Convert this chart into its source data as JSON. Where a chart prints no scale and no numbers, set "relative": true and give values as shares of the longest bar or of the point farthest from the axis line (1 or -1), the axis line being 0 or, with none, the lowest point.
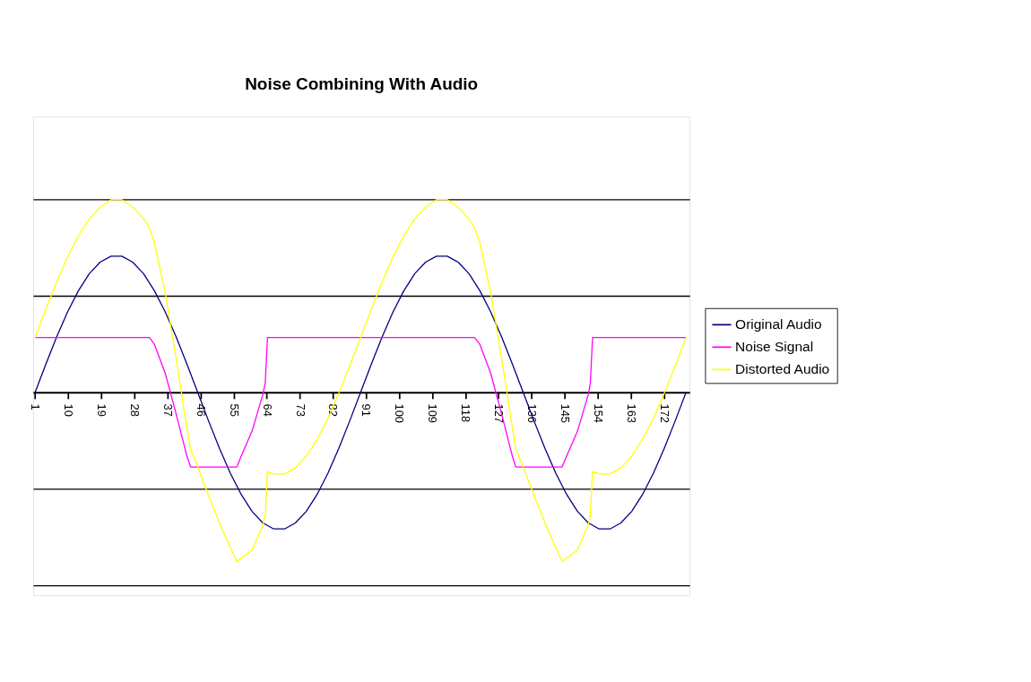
{
  "chart_data": {
    "type": "line",
    "title": "Noise Combining With Audio",
    "relative": true,
    "grid": "y",
    "legend": "right",
    "line_style": "solid",
    "marker": "none",
    "xlim": [
      0.5,
      179
    ],
    "xticks": [
      1,
      10,
      19,
      28,
      37,
      46,
      55,
      64,
      73,
      82,
      91,
      100,
      109,
      118,
      127,
      136,
      145,
      154,
      163,
      172
    ],
    "series": [
      {
        "name": "Original Audio",
        "color": "#000080",
        "x": [
          1,
          3.95,
          6.9,
          9.85,
          12.8,
          15.75,
          18.7,
          21.65,
          24.6,
          27.55,
          30.5,
          33.45,
          36.4,
          39.35,
          42.3,
          45.25,
          48.2,
          51.15,
          54.1,
          57.05,
          60,
          62.95,
          65.9,
          68.85,
          71.8,
          74.75,
          77.7,
          80.65,
          83.6,
          86.55,
          89.5,
          92.45,
          95.4,
          98.35,
          101.3,
          104.25,
          107.2,
          110.15,
          113.1,
          116.05,
          119,
          121.95,
          124.9,
          127.85,
          130.8,
          133.75,
          136.7,
          139.65,
          142.6,
          145.55,
          148.5,
          151.45,
          154.4,
          157.35,
          160.3,
          163.25,
          166.2,
          169.15,
          172.1,
          175.05,
          178
        ],
        "values": [
          0,
          0.148,
          0.289,
          0.418,
          0.528,
          0.616,
          0.676,
          0.707,
          0.707,
          0.676,
          0.616,
          0.528,
          0.418,
          0.289,
          0.148,
          0,
          -0.148,
          -0.289,
          -0.418,
          -0.528,
          -0.616,
          -0.676,
          -0.707,
          -0.707,
          -0.676,
          -0.616,
          -0.528,
          -0.418,
          -0.289,
          -0.148,
          0,
          0.148,
          0.289,
          0.418,
          0.528,
          0.616,
          0.676,
          0.707,
          0.707,
          0.676,
          0.616,
          0.528,
          0.418,
          0.289,
          0.148,
          0,
          -0.148,
          -0.289,
          -0.418,
          -0.528,
          -0.616,
          -0.676,
          -0.707,
          -0.707,
          -0.676,
          -0.616,
          -0.528,
          -0.418,
          -0.289,
          -0.148,
          0
        ]
      },
      {
        "name": "Noise Signal",
        "color": "#ff00ff",
        "x": [
          1,
          32.1,
          33.45,
          36.4,
          39.35,
          42.3,
          43.3,
          55.9,
          57.05,
          60,
          62.95,
          63.6,
          64.2,
          120.5,
          121.95,
          124.9,
          127.85,
          130.8,
          131.7,
          144.3,
          145.55,
          148.5,
          151.45,
          152,
          152.6,
          178
        ],
        "values": [
          0.285,
          0.285,
          0.25,
          0.1,
          -0.11,
          -0.33,
          -0.386,
          -0.386,
          -0.33,
          -0.2,
          -0.01,
          0.05,
          0.285,
          0.285,
          0.25,
          0.1,
          -0.11,
          -0.33,
          -0.386,
          -0.386,
          -0.33,
          -0.2,
          -0.01,
          0.05,
          0.285,
          0.285
        ]
      },
      {
        "name": "Distorted Audio",
        "color": "#ffff00",
        "x": [
          1,
          3.95,
          6.9,
          9.85,
          12.8,
          15.75,
          18.7,
          21.65,
          24.6,
          27.55,
          30.5,
          32.1,
          33.45,
          36.4,
          39.35,
          42.3,
          43.3,
          45.25,
          48.2,
          51.15,
          54.1,
          55.9,
          57.05,
          60,
          62.95,
          63.6,
          64.2,
          65.9,
          68.85,
          71.8,
          74.75,
          77.7,
          80.65,
          83.6,
          86.55,
          89.5,
          92.45,
          95.4,
          98.35,
          101.3,
          104.25,
          107.2,
          110.15,
          113.1,
          116.05,
          119,
          120.5,
          121.95,
          124.9,
          127.85,
          130.8,
          131.7,
          133.75,
          136.7,
          139.65,
          142.6,
          144.3,
          145.55,
          148.5,
          151.45,
          152,
          152.6,
          154.4,
          157.35,
          160.3,
          163.25,
          166.2,
          169.15,
          172.1,
          175.05,
          178
        ],
        "values": [
          0.285,
          0.433,
          0.574,
          0.703,
          0.813,
          0.901,
          0.961,
          1,
          1,
          0.961,
          0.901,
          0.855,
          0.778,
          0.518,
          0.179,
          -0.182,
          -0.291,
          -0.386,
          -0.534,
          -0.675,
          -0.804,
          -0.876,
          -0.858,
          -0.816,
          -0.686,
          -0.636,
          -0.409,
          -0.422,
          -0.422,
          -0.391,
          -0.331,
          -0.243,
          -0.133,
          -0.004,
          0.137,
          0.285,
          0.433,
          0.574,
          0.703,
          0.813,
          0.901,
          0.961,
          1,
          1,
          0.961,
          0.901,
          0.855,
          0.778,
          0.518,
          0.179,
          -0.182,
          -0.291,
          -0.386,
          -0.534,
          -0.675,
          -0.804,
          -0.876,
          -0.858,
          -0.816,
          -0.686,
          -0.636,
          -0.409,
          -0.422,
          -0.422,
          -0.391,
          -0.331,
          -0.243,
          -0.133,
          -0.004,
          0.137,
          0.285
        ]
      }
    ]
  }
}
